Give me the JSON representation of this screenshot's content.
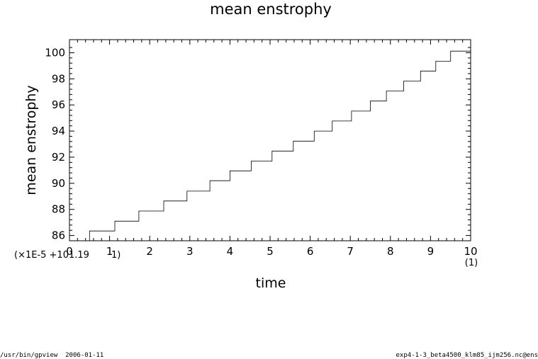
{
  "chart_data": {
    "type": "line",
    "title": "mean enstrophy",
    "xlabel": "time",
    "ylabel": "mean enstrophy",
    "x_scale_note": "(1)",
    "y_offset_note": "(×1E-5 +101.19",
    "y_offset_note_suffix": " 1)",
    "xlim": [
      0,
      10
    ],
    "ylim": [
      85.6,
      101.0
    ],
    "x_ticks": [
      "0",
      "1",
      "2",
      "3",
      "4",
      "5",
      "6",
      "7",
      "8",
      "9",
      "10"
    ],
    "y_ticks": [
      "86",
      "88",
      "90",
      "92",
      "94",
      "96",
      "98",
      "100"
    ],
    "grid": false,
    "series": [
      {
        "x": [
          0.5,
          0.5,
          1.13,
          1.13,
          1.73,
          1.73,
          2.35,
          2.35,
          2.93,
          2.93,
          3.5,
          3.5,
          4.0,
          4.0,
          4.53,
          4.53,
          5.05,
          5.05,
          5.58,
          5.58,
          6.1,
          6.1,
          6.55,
          6.55,
          7.03,
          7.03,
          7.5,
          7.5,
          7.9,
          7.9,
          8.33,
          8.33,
          8.75,
          8.75,
          9.13,
          9.13,
          9.5,
          9.5,
          10.0
        ],
        "y": [
          85.6,
          86.35,
          86.35,
          87.1,
          87.1,
          87.88,
          87.88,
          88.65,
          88.65,
          89.4,
          89.4,
          90.2,
          90.2,
          90.95,
          90.95,
          91.7,
          91.7,
          92.47,
          92.47,
          93.23,
          93.23,
          94.0,
          94.0,
          94.77,
          94.77,
          95.53,
          95.53,
          96.3,
          96.3,
          97.07,
          97.07,
          97.82,
          97.82,
          98.6,
          98.6,
          99.35,
          99.35,
          100.12,
          100.12
        ]
      }
    ]
  },
  "footer": {
    "left": "/usr/bin/gpview  2006-01-11",
    "right": "exp4-1-3_beta4500_klm85_ijm256.nc@ens"
  }
}
